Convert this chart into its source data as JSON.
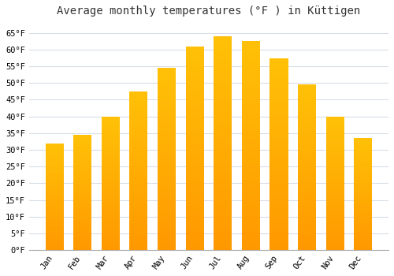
{
  "title": "Average monthly temperatures (°F ) in Küttigen",
  "months": [
    "Jan",
    "Feb",
    "Mar",
    "Apr",
    "May",
    "Jun",
    "Jul",
    "Aug",
    "Sep",
    "Oct",
    "Nov",
    "Dec"
  ],
  "values": [
    32,
    34.5,
    40,
    47.5,
    54.5,
    61,
    64,
    62.5,
    57.5,
    49.5,
    40,
    33.5
  ],
  "bar_color_top": "#FFC107",
  "bar_color_bottom": "#FF9800",
  "ylim_min": 0,
  "ylim_max": 68,
  "yticks": [
    0,
    5,
    10,
    15,
    20,
    25,
    30,
    35,
    40,
    45,
    50,
    55,
    60,
    65
  ],
  "background_color": "#ffffff",
  "grid_color": "#d8dce8",
  "title_fontsize": 10,
  "tick_fontsize": 7.5,
  "bar_width": 0.65
}
